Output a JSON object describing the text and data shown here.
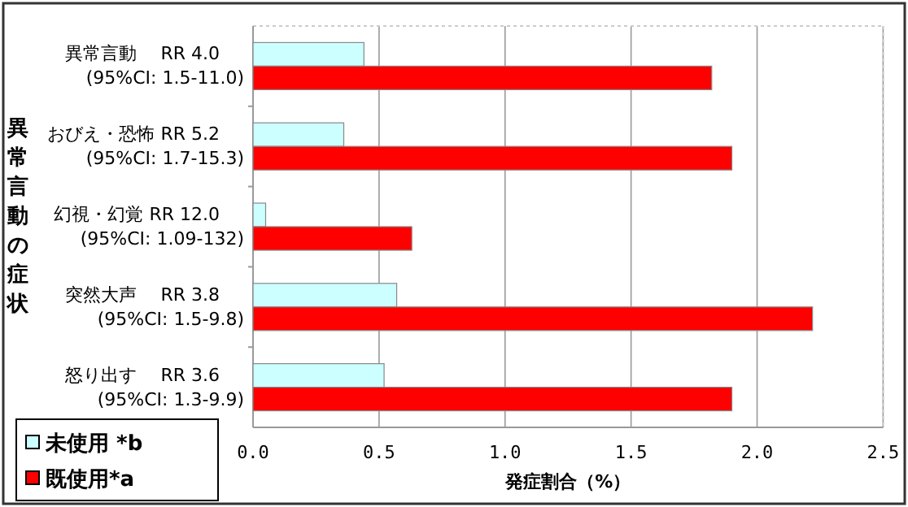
{
  "chart_data": {
    "type": "bar",
    "orientation": "horizontal",
    "ylabel": "異常言動の症状",
    "xlabel": "発症割合（%）",
    "categories": [
      "異常言動　 RR 4.0\n(95%CI:  1.5-11.0)",
      "おびえ・恐怖 RR 5.2\n(95%CI:  1.7-15.3)",
      "幻視・幻覚 RR 12.0\n(95%CI:  1.09-132)",
      "突然大声　 RR 3.8\n(95%CI:  1.5-9.8)",
      "怒り出す　 RR 3.6\n(95%CI:  1.3-9.9)"
    ],
    "series": [
      {
        "name": "未使用 *b",
        "color": "#ccffff",
        "values": [
          0.44,
          0.36,
          0.05,
          0.57,
          0.52
        ]
      },
      {
        "name": "既使用*a",
        "color": "#ff0000",
        "values": [
          1.82,
          1.9,
          0.63,
          2.22,
          1.9
        ]
      }
    ],
    "xlim": [
      0,
      2.5
    ],
    "xticks": [
      {
        "value": 0,
        "label": "0.0"
      },
      {
        "value": 0.5,
        "label": "0.5"
      },
      {
        "value": 1,
        "label": "1.0"
      },
      {
        "value": 1.5,
        "label": "1.5"
      },
      {
        "value": 2,
        "label": "2.0"
      },
      {
        "value": 2.5,
        "label": "2.5"
      }
    ],
    "grid": "x",
    "legend": "bottom left"
  }
}
